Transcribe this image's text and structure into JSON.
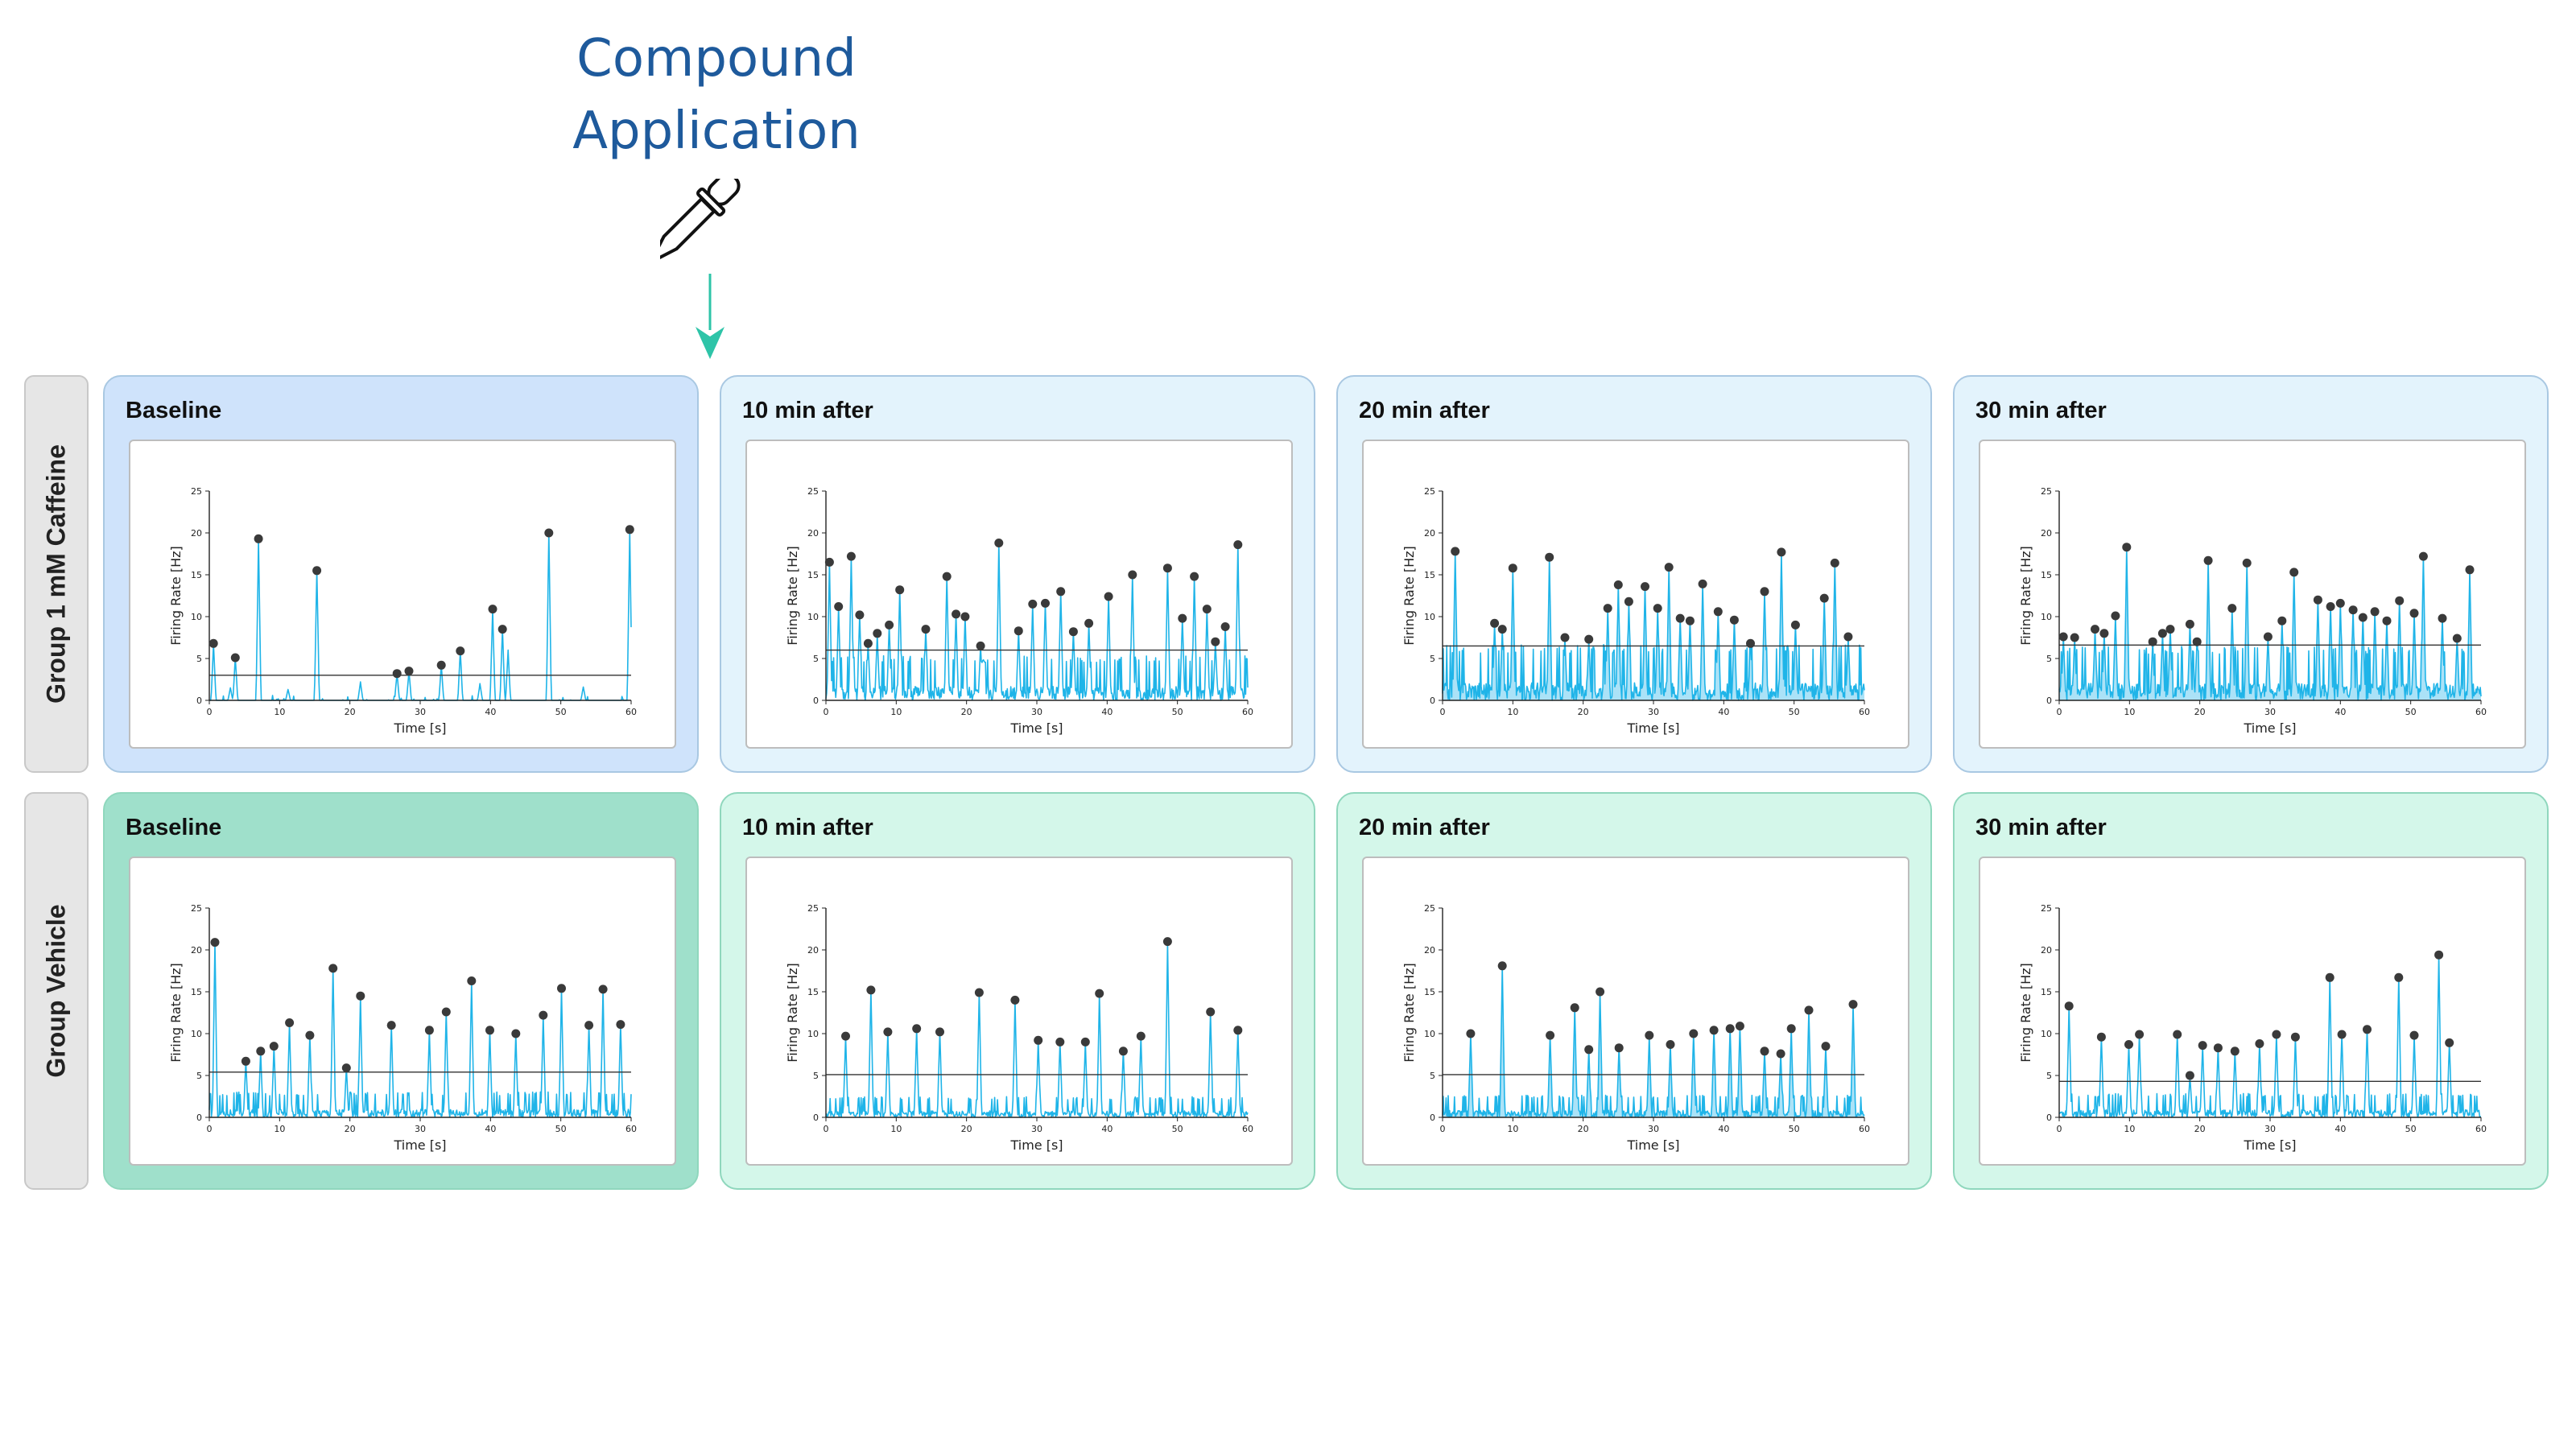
{
  "headline": {
    "line1": "Compound",
    "line2": "Application",
    "dropper_icon": "dropper-icon",
    "arrow_icon": "arrow-down-icon",
    "arrow_color": "#2ec4a8"
  },
  "colors": {
    "trace": "#1fb4e8",
    "fill": "#8fd8f4",
    "peak_dot": "#3a3a3a",
    "threshold": "#333333",
    "caffeine_baseline_panel": "#cfe3fb",
    "caffeine_panel": "#e3f3fc",
    "vehicle_baseline_panel": "#9fe0cb",
    "vehicle_panel": "#d4f7ea"
  },
  "groups": [
    {
      "label": "Group 1 mM Caffeine"
    },
    {
      "label": "Group Vehicle"
    }
  ],
  "panel_titles": [
    "Baseline",
    "10 min after",
    "20 min after",
    "30 min after"
  ],
  "chart_data": [
    {
      "type": "line",
      "group": "Group 1 mM Caffeine",
      "title": "Baseline",
      "xlabel": "Time [s]",
      "ylabel": "Firing Rate [Hz]",
      "xlim": [
        0,
        60
      ],
      "ylim": [
        0,
        25
      ],
      "xticks": [
        0,
        10,
        20,
        30,
        40,
        50,
        60
      ],
      "yticks": [
        0,
        5,
        10,
        15,
        20,
        25
      ],
      "threshold": 3.0,
      "fill": false,
      "peaks": [
        [
          0.6,
          6.8
        ],
        [
          3.7,
          5.1
        ],
        [
          7.0,
          19.3
        ],
        [
          15.3,
          15.5
        ],
        [
          26.7,
          3.2
        ],
        [
          28.4,
          3.5
        ],
        [
          33.0,
          4.2
        ],
        [
          35.7,
          5.9
        ],
        [
          40.3,
          10.9
        ],
        [
          41.7,
          8.5
        ],
        [
          48.3,
          20.0
        ],
        [
          59.8,
          20.4
        ]
      ],
      "minor": [
        [
          3.0,
          1.5
        ],
        [
          11.2,
          1.3
        ],
        [
          21.5,
          2.2
        ],
        [
          38.5,
          2.0
        ],
        [
          42.5,
          6.0
        ],
        [
          53.2,
          1.6
        ]
      ]
    },
    {
      "type": "line",
      "group": "Group 1 mM Caffeine",
      "title": "10 min after",
      "xlabel": "Time [s]",
      "ylabel": "Firing Rate [Hz]",
      "xlim": [
        0,
        60
      ],
      "ylim": [
        0,
        25
      ],
      "xticks": [
        0,
        10,
        20,
        30,
        40,
        50,
        60
      ],
      "yticks": [
        0,
        5,
        10,
        15,
        20,
        25
      ],
      "threshold": 6.0,
      "fill": false,
      "peaks": [
        [
          0.5,
          16.5
        ],
        [
          1.8,
          11.2
        ],
        [
          3.6,
          17.2
        ],
        [
          4.8,
          10.2
        ],
        [
          6.0,
          6.8
        ],
        [
          7.3,
          8.0
        ],
        [
          9.0,
          9.0
        ],
        [
          10.5,
          13.2
        ],
        [
          14.2,
          8.5
        ],
        [
          17.2,
          14.8
        ],
        [
          18.5,
          10.3
        ],
        [
          19.8,
          10.0
        ],
        [
          22.0,
          6.5
        ],
        [
          24.6,
          18.8
        ],
        [
          27.4,
          8.3
        ],
        [
          29.4,
          11.5
        ],
        [
          31.2,
          11.6
        ],
        [
          33.4,
          13.0
        ],
        [
          35.2,
          8.2
        ],
        [
          37.4,
          9.2
        ],
        [
          40.2,
          12.4
        ],
        [
          43.6,
          15.0
        ],
        [
          48.6,
          15.8
        ],
        [
          50.7,
          9.8
        ],
        [
          52.4,
          14.8
        ],
        [
          54.2,
          10.9
        ],
        [
          55.4,
          7.0
        ],
        [
          56.8,
          8.8
        ],
        [
          58.6,
          18.6
        ]
      ],
      "noise": 2.8
    },
    {
      "type": "line",
      "group": "Group 1 mM Caffeine",
      "title": "20 min after",
      "xlabel": "Time [s]",
      "ylabel": "Firing Rate [Hz]",
      "xlim": [
        0,
        60
      ],
      "ylim": [
        0,
        25
      ],
      "xticks": [
        0,
        10,
        20,
        30,
        40,
        50,
        60
      ],
      "yticks": [
        0,
        5,
        10,
        15,
        20,
        25
      ],
      "threshold": 6.5,
      "fill": true,
      "peaks": [
        [
          1.8,
          17.8
        ],
        [
          7.4,
          9.2
        ],
        [
          8.5,
          8.5
        ],
        [
          10.0,
          15.8
        ],
        [
          15.2,
          17.1
        ],
        [
          17.4,
          7.5
        ],
        [
          20.8,
          7.3
        ],
        [
          23.5,
          11.0
        ],
        [
          25.0,
          13.8
        ],
        [
          26.5,
          11.8
        ],
        [
          28.8,
          13.6
        ],
        [
          30.6,
          11.0
        ],
        [
          32.2,
          15.9
        ],
        [
          33.8,
          9.8
        ],
        [
          35.2,
          9.5
        ],
        [
          37.0,
          13.9
        ],
        [
          39.2,
          10.6
        ],
        [
          41.5,
          9.6
        ],
        [
          43.8,
          6.8
        ],
        [
          45.8,
          13.0
        ],
        [
          48.2,
          17.7
        ],
        [
          50.2,
          9.0
        ],
        [
          54.3,
          12.2
        ],
        [
          55.8,
          16.4
        ],
        [
          57.7,
          7.6
        ]
      ],
      "noise": 3.5
    },
    {
      "type": "line",
      "group": "Group 1 mM Caffeine",
      "title": "30 min after",
      "xlabel": "Time [s]",
      "ylabel": "Firing Rate [Hz]",
      "xlim": [
        0,
        60
      ],
      "ylim": [
        0,
        25
      ],
      "xticks": [
        0,
        10,
        20,
        30,
        40,
        50,
        60
      ],
      "yticks": [
        0,
        5,
        10,
        15,
        20,
        25
      ],
      "threshold": 6.6,
      "fill": true,
      "peaks": [
        [
          0.6,
          7.6
        ],
        [
          2.2,
          7.5
        ],
        [
          5.1,
          8.5
        ],
        [
          6.4,
          8.0
        ],
        [
          8.0,
          10.1
        ],
        [
          9.6,
          18.3
        ],
        [
          13.3,
          7.0
        ],
        [
          14.7,
          8.0
        ],
        [
          15.8,
          8.5
        ],
        [
          18.6,
          9.1
        ],
        [
          19.6,
          7.0
        ],
        [
          21.2,
          16.7
        ],
        [
          24.6,
          11.0
        ],
        [
          26.7,
          16.4
        ],
        [
          29.7,
          7.6
        ],
        [
          31.7,
          9.5
        ],
        [
          33.4,
          15.3
        ],
        [
          36.8,
          12.0
        ],
        [
          38.6,
          11.2
        ],
        [
          40.0,
          11.6
        ],
        [
          41.8,
          10.8
        ],
        [
          43.2,
          9.9
        ],
        [
          44.9,
          10.6
        ],
        [
          46.6,
          9.5
        ],
        [
          48.4,
          11.9
        ],
        [
          50.5,
          10.4
        ],
        [
          51.8,
          17.2
        ],
        [
          54.5,
          9.8
        ],
        [
          56.6,
          7.4
        ],
        [
          58.4,
          15.6
        ]
      ],
      "noise": 3.4
    },
    {
      "type": "line",
      "group": "Group Vehicle",
      "title": "Baseline",
      "xlabel": "Time [s]",
      "ylabel": "Firing Rate [Hz]",
      "xlim": [
        0,
        60
      ],
      "ylim": [
        0,
        25
      ],
      "xticks": [
        0,
        10,
        20,
        30,
        40,
        50,
        60
      ],
      "yticks": [
        0,
        5,
        10,
        15,
        20,
        25
      ],
      "threshold": 5.4,
      "fill": false,
      "peaks": [
        [
          0.8,
          20.9
        ],
        [
          5.2,
          6.7
        ],
        [
          7.3,
          7.9
        ],
        [
          9.2,
          8.5
        ],
        [
          11.4,
          11.3
        ],
        [
          14.3,
          9.8
        ],
        [
          17.6,
          17.8
        ],
        [
          19.5,
          5.9
        ],
        [
          21.5,
          14.5
        ],
        [
          25.9,
          11.0
        ],
        [
          31.3,
          10.4
        ],
        [
          33.7,
          12.6
        ],
        [
          37.3,
          16.3
        ],
        [
          39.9,
          10.4
        ],
        [
          43.6,
          10.0
        ],
        [
          47.5,
          12.2
        ],
        [
          50.1,
          15.4
        ],
        [
          54.0,
          11.0
        ],
        [
          56.0,
          15.3
        ],
        [
          58.5,
          11.1
        ]
      ],
      "noise": 1.6
    },
    {
      "type": "line",
      "group": "Group Vehicle",
      "title": "10 min after",
      "xlabel": "Time [s]",
      "ylabel": "Firing Rate [Hz]",
      "xlim": [
        0,
        60
      ],
      "ylim": [
        0,
        25
      ],
      "xticks": [
        0,
        10,
        20,
        30,
        40,
        50,
        60
      ],
      "yticks": [
        0,
        5,
        10,
        15,
        20,
        25
      ],
      "threshold": 5.1,
      "fill": false,
      "peaks": [
        [
          2.8,
          9.7
        ],
        [
          6.4,
          15.2
        ],
        [
          8.8,
          10.2
        ],
        [
          12.9,
          10.6
        ],
        [
          16.2,
          10.2
        ],
        [
          21.8,
          14.9
        ],
        [
          26.9,
          14.0
        ],
        [
          30.2,
          9.2
        ],
        [
          33.3,
          9.0
        ],
        [
          36.9,
          9.0
        ],
        [
          38.9,
          14.8
        ],
        [
          42.3,
          7.9
        ],
        [
          44.8,
          9.7
        ],
        [
          48.6,
          21.0
        ],
        [
          54.7,
          12.6
        ],
        [
          58.6,
          10.4
        ]
      ],
      "noise": 1.3
    },
    {
      "type": "line",
      "group": "Group Vehicle",
      "title": "20 min after",
      "xlabel": "Time [s]",
      "ylabel": "Firing Rate [Hz]",
      "xlim": [
        0,
        60
      ],
      "ylim": [
        0,
        25
      ],
      "xticks": [
        0,
        10,
        20,
        30,
        40,
        50,
        60
      ],
      "yticks": [
        0,
        5,
        10,
        15,
        20,
        25
      ],
      "threshold": 5.1,
      "fill": true,
      "peaks": [
        [
          4.0,
          10.0
        ],
        [
          8.5,
          18.1
        ],
        [
          15.3,
          9.8
        ],
        [
          18.8,
          13.1
        ],
        [
          20.8,
          8.1
        ],
        [
          22.4,
          15.0
        ],
        [
          25.1,
          8.3
        ],
        [
          29.4,
          9.8
        ],
        [
          32.4,
          8.7
        ],
        [
          35.7,
          10.0
        ],
        [
          38.6,
          10.4
        ],
        [
          40.9,
          10.6
        ],
        [
          42.3,
          10.9
        ],
        [
          45.8,
          7.9
        ],
        [
          48.1,
          7.6
        ],
        [
          49.6,
          10.6
        ],
        [
          52.1,
          12.8
        ],
        [
          54.5,
          8.5
        ],
        [
          58.4,
          13.5
        ]
      ],
      "noise": 1.4
    },
    {
      "type": "line",
      "group": "Group Vehicle",
      "title": "30 min after",
      "xlabel": "Time [s]",
      "ylabel": "Firing Rate [Hz]",
      "xlim": [
        0,
        60
      ],
      "ylim": [
        0,
        25
      ],
      "xticks": [
        0,
        10,
        20,
        30,
        40,
        50,
        60
      ],
      "yticks": [
        0,
        5,
        10,
        15,
        20,
        25
      ],
      "threshold": 4.3,
      "fill": false,
      "peaks": [
        [
          1.4,
          13.3
        ],
        [
          6.0,
          9.6
        ],
        [
          9.9,
          8.7
        ],
        [
          11.4,
          9.9
        ],
        [
          16.8,
          9.9
        ],
        [
          18.6,
          5.0
        ],
        [
          20.4,
          8.6
        ],
        [
          22.6,
          8.3
        ],
        [
          25.0,
          7.9
        ],
        [
          28.5,
          8.8
        ],
        [
          30.9,
          9.9
        ],
        [
          33.6,
          9.6
        ],
        [
          38.5,
          16.7
        ],
        [
          40.2,
          9.9
        ],
        [
          43.8,
          10.5
        ],
        [
          48.3,
          16.7
        ],
        [
          50.5,
          9.8
        ],
        [
          54.0,
          19.4
        ],
        [
          55.5,
          8.9
        ]
      ],
      "noise": 1.5
    }
  ]
}
